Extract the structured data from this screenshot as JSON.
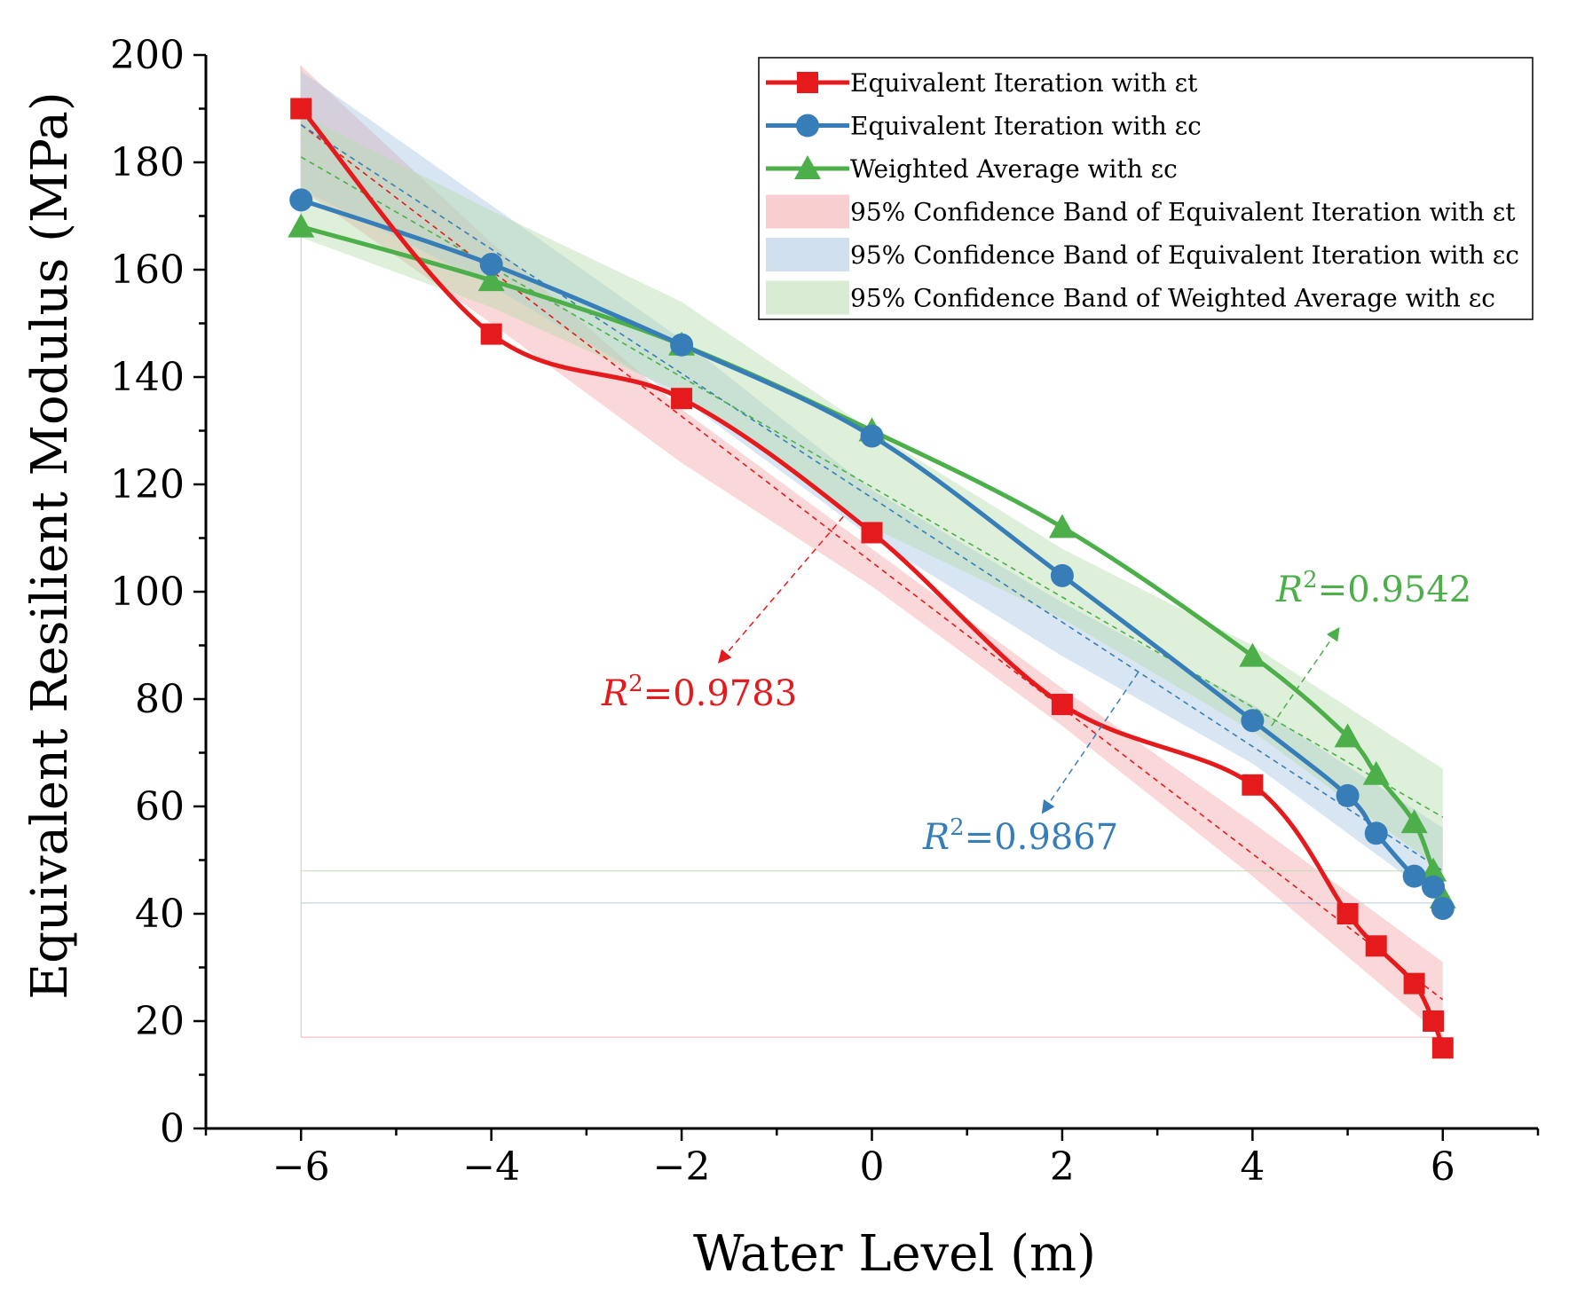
{
  "chart_data": {
    "type": "line",
    "title": "",
    "xlabel": "Water Level (m)",
    "ylabel": "Equivalent Resilient Modulus (MPa)",
    "xlim": [
      -7,
      7
    ],
    "ylim": [
      0,
      200
    ],
    "xticks": [
      -6,
      -4,
      -2,
      0,
      2,
      4,
      6
    ],
    "xtick_labels": [
      "−6",
      "−4",
      "−2",
      "0",
      "2",
      "4",
      "6"
    ],
    "yticks": [
      0,
      20,
      40,
      60,
      80,
      100,
      120,
      140,
      160,
      180,
      200
    ],
    "ytick_labels": [
      "0",
      "20",
      "40",
      "60",
      "80",
      "100",
      "120",
      "140",
      "160",
      "180",
      "200"
    ],
    "grid": false,
    "legend_position": "top-right",
    "series": [
      {
        "name": "Equivalent Iteration with εt",
        "marker": "square",
        "color": "#e41a1c",
        "x": [
          -6,
          -4,
          -2,
          0,
          2,
          4,
          5,
          5.3,
          5.7,
          5.9,
          6
        ],
        "y": [
          190,
          148,
          136,
          111,
          79,
          64,
          40,
          34,
          27,
          20,
          15
        ]
      },
      {
        "name": "Equivalent Iteration with εc",
        "marker": "circle",
        "color": "#377eb8",
        "x": [
          -6,
          -4,
          -2,
          0,
          2,
          4,
          5,
          5.3,
          5.7,
          5.9,
          6
        ],
        "y": [
          173,
          161,
          146,
          129,
          103,
          76,
          62,
          55,
          47,
          45,
          41
        ]
      },
      {
        "name": "Weighted Average with εc",
        "marker": "triangle",
        "color": "#4daf4a",
        "x": [
          -6,
          -4,
          -2,
          0,
          2,
          4,
          5,
          5.3,
          5.7,
          5.9,
          6
        ],
        "y": [
          168,
          158,
          146,
          130,
          112,
          88,
          73,
          66,
          57,
          48,
          43
        ]
      }
    ],
    "fit_lines": [
      {
        "series": "Equivalent Iteration with εt",
        "y_at_x_min": 187,
        "y_at_x_max": 24
      },
      {
        "series": "Equivalent Iteration with εc",
        "y_at_x_min": 187,
        "y_at_x_max": 48
      },
      {
        "series": "Weighted Average with εc",
        "y_at_x_min": 181,
        "y_at_x_max": 58
      }
    ],
    "confidence_bands": [
      {
        "name": "95% Confidence Band of Equivalent Iteration with εt",
        "color": "#f4a6a8",
        "x": [
          -6,
          -4,
          -2,
          0,
          2,
          4,
          6
        ],
        "upper": [
          198,
          165,
          134,
          108,
          82,
          57,
          31
        ],
        "lower": [
          175,
          150,
          124,
          101,
          75,
          47,
          17
        ]
      },
      {
        "name": "95% Confidence Band of Equivalent Iteration with εc",
        "color": "#a9c6e2",
        "x": [
          -6,
          -4,
          -2,
          0,
          2,
          4,
          6
        ],
        "upper": [
          197,
          172,
          147,
          119,
          98,
          79,
          56
        ],
        "lower": [
          175,
          157,
          136,
          110,
          88,
          68,
          42
        ]
      },
      {
        "name": "95% Confidence Band of Weighted Average with εc",
        "color": "#b6dcae",
        "x": [
          -6,
          -4,
          -2,
          0,
          2,
          4,
          6
        ],
        "upper": [
          189,
          171,
          154,
          130,
          108,
          90,
          67
        ],
        "lower": [
          166,
          153,
          137,
          112,
          95,
          74,
          48
        ]
      }
    ],
    "annotations": [
      {
        "label": "R",
        "sup": "2",
        "value": "=0.9783",
        "color": "#e41a1c"
      },
      {
        "label": "R",
        "sup": "2",
        "value": "=0.9867",
        "color": "#377eb8"
      },
      {
        "label": "R",
        "sup": "2",
        "value": "=0.9542",
        "color": "#4daf4a"
      }
    ]
  }
}
